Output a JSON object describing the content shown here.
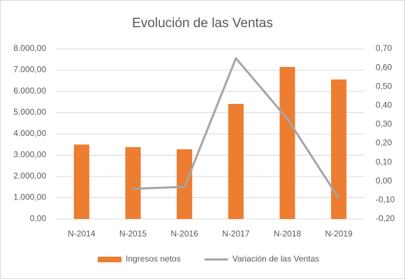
{
  "chart_data": {
    "type": "bar_line",
    "title": "Evolución de las Ventas",
    "categories": [
      "N-2014",
      "N-2015",
      "N-2016",
      "N-2017",
      "N-2018",
      "N-2019"
    ],
    "series": [
      {
        "name": "Ingresos netos",
        "color": "#ed7d31",
        "type": "bar",
        "values": [
          3500,
          3380,
          3280,
          5410,
          7150,
          6560
        ]
      },
      {
        "name": "Variación de las Ventas",
        "color": "#a5a5a5",
        "type": "line",
        "axis": "y2",
        "values": [
          null,
          -0.04,
          -0.03,
          0.65,
          0.33,
          -0.09
        ]
      }
    ],
    "ylim": [
      0,
      8000
    ],
    "yticks": [
      {
        "value": 0,
        "label": "0,00"
      },
      {
        "value": 1000,
        "label": "1.000,00"
      },
      {
        "value": 2000,
        "label": "2.000,00"
      },
      {
        "value": 3000,
        "label": "3.000,00"
      },
      {
        "value": 4000,
        "label": "4.000,00"
      },
      {
        "value": 5000,
        "label": "5.000,00"
      },
      {
        "value": 6000,
        "label": "6.000,00"
      },
      {
        "value": 7000,
        "label": "7.000,00"
      },
      {
        "value": 8000,
        "label": "8.000,00"
      }
    ],
    "y2lim": [
      -0.2,
      0.7
    ],
    "y2ticks": [
      {
        "value": -0.2,
        "label": "-0,20"
      },
      {
        "value": -0.1,
        "label": "-0,10"
      },
      {
        "value": 0,
        "label": "0,00"
      },
      {
        "value": 0.1,
        "label": "0,10"
      },
      {
        "value": 0.2,
        "label": "0,20"
      },
      {
        "value": 0.3,
        "label": "0,30"
      },
      {
        "value": 0.4,
        "label": "0,40"
      },
      {
        "value": 0.5,
        "label": "0,50"
      },
      {
        "value": 0.6,
        "label": "0,60"
      },
      {
        "value": 0.7,
        "label": "0,70"
      }
    ],
    "legend": "bottom"
  }
}
